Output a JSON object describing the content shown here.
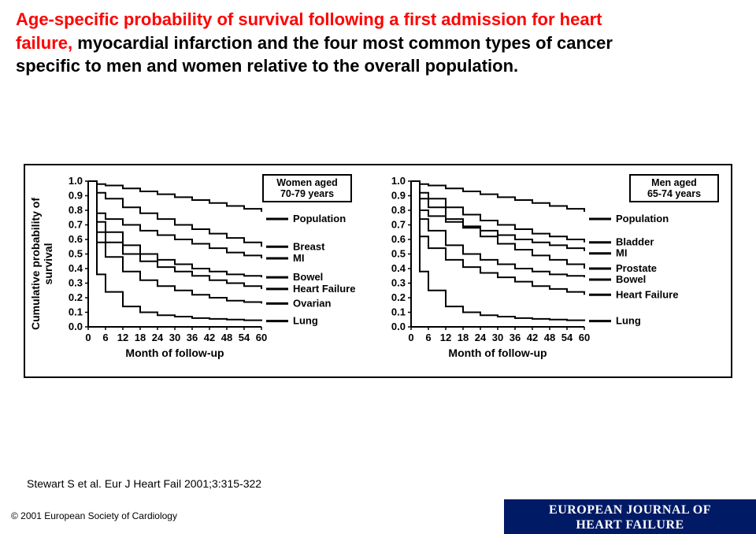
{
  "title": {
    "line1_red": "Age-specific probability of survival following a first admission for heart",
    "line2_red_a": "failure,",
    "line2_black": " myocardial infarction and the four most common types of cancer",
    "line3_black": "specific to men and women relative to the overall population."
  },
  "citation": "Stewart S et al. Eur J Heart Fail 2001;3:315-322",
  "copyright": "© 2001 European Society of Cardiology",
  "journal": {
    "line1": "EUROPEAN JOURNAL OF",
    "line2": "HEART FAILURE"
  },
  "chart": {
    "y_axis_title": "Cumulative probability of\nsurvival",
    "x_axis_title": "Month of follow-up",
    "x_ticks": [
      0,
      6,
      12,
      18,
      24,
      30,
      36,
      42,
      48,
      54,
      60
    ],
    "y_ticks": [
      0.0,
      0.1,
      0.2,
      0.3,
      0.4,
      0.5,
      0.6,
      0.7,
      0.8,
      0.9,
      1.0
    ],
    "xlim": [
      0,
      60
    ],
    "ylim": [
      0,
      1.0
    ],
    "line_color": "#000000",
    "line_width": 2,
    "background": "#ffffff",
    "axis_fontsize": 14,
    "tick_fontsize": 13,
    "label_fontsize": 13,
    "panels": [
      {
        "box_label": "Women aged\n70-79 years",
        "labels": [
          "Population",
          "Breast",
          "MI",
          "Bowel",
          "Heart Failure",
          "Ovarian",
          "Lung"
        ],
        "x": [
          0,
          3,
          6,
          12,
          18,
          24,
          30,
          36,
          42,
          48,
          54,
          60
        ],
        "series": {
          "Population": [
            1.0,
            0.98,
            0.97,
            0.95,
            0.93,
            0.91,
            0.89,
            0.87,
            0.85,
            0.83,
            0.81,
            0.79
          ],
          "Breast": [
            1.0,
            0.92,
            0.88,
            0.82,
            0.78,
            0.74,
            0.7,
            0.67,
            0.64,
            0.61,
            0.58,
            0.55
          ],
          "MI": [
            1.0,
            0.78,
            0.74,
            0.7,
            0.66,
            0.63,
            0.6,
            0.57,
            0.54,
            0.51,
            0.49,
            0.47
          ],
          "Bowel": [
            1.0,
            0.72,
            0.65,
            0.56,
            0.5,
            0.46,
            0.43,
            0.4,
            0.38,
            0.36,
            0.35,
            0.34
          ],
          "Heart Failure": [
            1.0,
            0.65,
            0.58,
            0.5,
            0.45,
            0.41,
            0.38,
            0.35,
            0.32,
            0.3,
            0.28,
            0.26
          ],
          "Ovarian": [
            1.0,
            0.58,
            0.48,
            0.38,
            0.32,
            0.28,
            0.25,
            0.22,
            0.2,
            0.18,
            0.17,
            0.16
          ],
          "Lung": [
            1.0,
            0.36,
            0.24,
            0.14,
            0.1,
            0.08,
            0.07,
            0.06,
            0.055,
            0.05,
            0.045,
            0.04
          ]
        }
      },
      {
        "box_label": "Men aged\n65-74 years",
        "labels": [
          "Population",
          "Bladder",
          "MI",
          "Prostate",
          "Bowel",
          "Heart Failure",
          "Lung"
        ],
        "x": [
          0,
          3,
          6,
          12,
          18,
          24,
          30,
          36,
          42,
          48,
          54,
          60
        ],
        "series": {
          "Population": [
            1.0,
            0.98,
            0.97,
            0.95,
            0.93,
            0.91,
            0.89,
            0.87,
            0.85,
            0.83,
            0.81,
            0.79
          ],
          "Bladder": [
            1.0,
            0.92,
            0.88,
            0.82,
            0.77,
            0.73,
            0.7,
            0.67,
            0.64,
            0.62,
            0.6,
            0.58
          ],
          "MI": [
            1.0,
            0.8,
            0.76,
            0.72,
            0.69,
            0.66,
            0.63,
            0.6,
            0.58,
            0.56,
            0.54,
            0.52
          ],
          "Prostate": [
            1.0,
            0.88,
            0.82,
            0.74,
            0.68,
            0.62,
            0.57,
            0.53,
            0.49,
            0.46,
            0.43,
            0.4
          ],
          "Bowel": [
            1.0,
            0.74,
            0.66,
            0.56,
            0.5,
            0.46,
            0.43,
            0.4,
            0.38,
            0.36,
            0.35,
            0.34
          ],
          "Heart Failure": [
            1.0,
            0.62,
            0.54,
            0.46,
            0.41,
            0.37,
            0.34,
            0.31,
            0.28,
            0.26,
            0.24,
            0.22
          ],
          "Lung": [
            1.0,
            0.38,
            0.25,
            0.14,
            0.1,
            0.08,
            0.07,
            0.06,
            0.055,
            0.05,
            0.045,
            0.04
          ]
        }
      }
    ]
  }
}
